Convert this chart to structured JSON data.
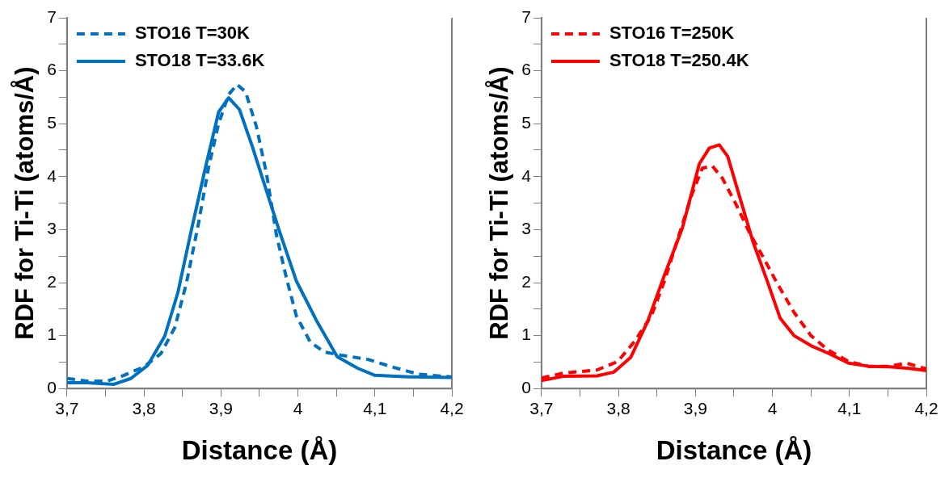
{
  "chart_data": [
    {
      "type": "line",
      "xlabel": "Distance (Å)",
      "ylabel": "RDF for Ti-Ti (atoms/Å)",
      "legend": "top left",
      "xlim": [
        3.7,
        4.2
      ],
      "ylim": [
        0,
        7
      ],
      "xticks": [
        {
          "value": 3.7,
          "label": "3,7"
        },
        {
          "value": 3.75,
          "label": null
        },
        {
          "value": 3.8,
          "label": "3,8"
        },
        {
          "value": 3.85,
          "label": null
        },
        {
          "value": 3.9,
          "label": "3,9"
        },
        {
          "value": 3.95,
          "label": null
        },
        4,
        {
          "value": 4.05,
          "label": null
        },
        {
          "value": 4.1,
          "label": "4,1"
        },
        {
          "value": 4.15,
          "label": null
        },
        {
          "value": 4.2,
          "label": "4,2"
        }
      ],
      "yticks": [
        0,
        {
          "value": 0.5,
          "label": null
        },
        1,
        {
          "value": 1.5,
          "label": null
        },
        2,
        {
          "value": 2.5,
          "label": null
        },
        3,
        {
          "value": 3.5,
          "label": null
        },
        4,
        {
          "value": 4.5,
          "label": null
        },
        5,
        {
          "value": 5.5,
          "label": null
        },
        6,
        {
          "value": 6.5,
          "label": null
        },
        7
      ],
      "series": [
        {
          "name": "STO16 T=30K",
          "color": "#0070c0",
          "line_style": "dashed",
          "x": [
            3.7,
            3.726,
            3.752,
            3.774,
            3.8,
            3.822,
            3.84,
            3.855,
            3.871,
            3.884,
            3.897,
            3.91,
            3.921,
            3.932,
            3.946,
            3.959,
            3.972,
            3.985,
            3.998,
            4.016,
            4.034,
            4.056,
            4.091,
            4.122,
            4.157,
            4.2
          ],
          "values": [
            0.19,
            0.14,
            0.14,
            0.25,
            0.41,
            0.66,
            1.15,
            1.98,
            3.13,
            4.18,
            5.0,
            5.55,
            5.74,
            5.6,
            4.95,
            4.07,
            2.91,
            2.09,
            1.37,
            0.88,
            0.69,
            0.63,
            0.55,
            0.41,
            0.27,
            0.22
          ]
        },
        {
          "name": "STO18 T=33.6K",
          "color": "#0070c0",
          "line_style": "solid",
          "x": [
            3.7,
            3.726,
            3.761,
            3.783,
            3.805,
            3.827,
            3.844,
            3.862,
            3.88,
            3.897,
            3.91,
            3.924,
            3.941,
            3.959,
            3.976,
            3.998,
            4.025,
            4.051,
            4.078,
            4.1,
            4.144,
            4.2
          ],
          "values": [
            0.11,
            0.11,
            0.08,
            0.19,
            0.44,
            0.99,
            1.81,
            3.02,
            4.18,
            5.22,
            5.49,
            5.27,
            4.56,
            3.74,
            2.97,
            2.03,
            1.26,
            0.6,
            0.38,
            0.25,
            0.22,
            0.21
          ]
        }
      ]
    },
    {
      "type": "line",
      "xlabel": "Distance (Å)",
      "ylabel": "RDF for Ti-Ti (atoms/Å)",
      "legend": "top left",
      "xlim": [
        3.7,
        4.2
      ],
      "ylim": [
        0,
        7
      ],
      "xticks": [
        {
          "value": 3.7,
          "label": "3,7"
        },
        {
          "value": 3.75,
          "label": null
        },
        {
          "value": 3.8,
          "label": "3,8"
        },
        {
          "value": 3.85,
          "label": null
        },
        {
          "value": 3.9,
          "label": "3,9"
        },
        {
          "value": 3.95,
          "label": null
        },
        4,
        {
          "value": 4.05,
          "label": null
        },
        {
          "value": 4.1,
          "label": "4,1"
        },
        {
          "value": 4.15,
          "label": null
        },
        {
          "value": 4.2,
          "label": "4,2"
        }
      ],
      "yticks": [
        0,
        {
          "value": 0.5,
          "label": null
        },
        1,
        {
          "value": 1.5,
          "label": null
        },
        2,
        {
          "value": 2.5,
          "label": null
        },
        3,
        {
          "value": 3.5,
          "label": null
        },
        4,
        {
          "value": 4.5,
          "label": null
        },
        5,
        {
          "value": 5.5,
          "label": null
        },
        6,
        {
          "value": 6.5,
          "label": null
        },
        7
      ],
      "series": [
        {
          "name": "STO16 T=250K",
          "color": "#ff0000",
          "line_style": "dashed",
          "x": [
            3.7,
            3.728,
            3.772,
            3.799,
            3.821,
            3.843,
            3.86,
            3.878,
            3.896,
            3.909,
            3.922,
            3.935,
            3.953,
            3.971,
            3.988,
            4.006,
            4.028,
            4.05,
            4.072,
            4.099,
            4.125,
            4.152,
            4.174,
            4.2
          ],
          "values": [
            0.2,
            0.29,
            0.35,
            0.51,
            0.89,
            1.38,
            2.04,
            2.87,
            3.69,
            4.16,
            4.2,
            3.97,
            3.47,
            2.92,
            2.48,
            1.99,
            1.44,
            1.0,
            0.73,
            0.51,
            0.42,
            0.42,
            0.48,
            0.37
          ]
        },
        {
          "name": "STO18 T=250.4K",
          "color": "#ff0000",
          "line_style": "solid",
          "x": [
            3.7,
            3.728,
            3.772,
            3.794,
            3.816,
            3.838,
            3.86,
            3.883,
            3.905,
            3.918,
            3.931,
            3.942,
            3.957,
            3.975,
            3.993,
            4.01,
            4.028,
            4.05,
            4.072,
            4.099,
            4.125,
            4.152,
            4.178,
            4.2
          ],
          "values": [
            0.15,
            0.23,
            0.24,
            0.31,
            0.59,
            1.27,
            2.15,
            3.03,
            4.24,
            4.54,
            4.6,
            4.38,
            3.64,
            2.76,
            2.04,
            1.33,
            1.0,
            0.81,
            0.67,
            0.48,
            0.42,
            0.41,
            0.38,
            0.34
          ]
        }
      ]
    }
  ]
}
